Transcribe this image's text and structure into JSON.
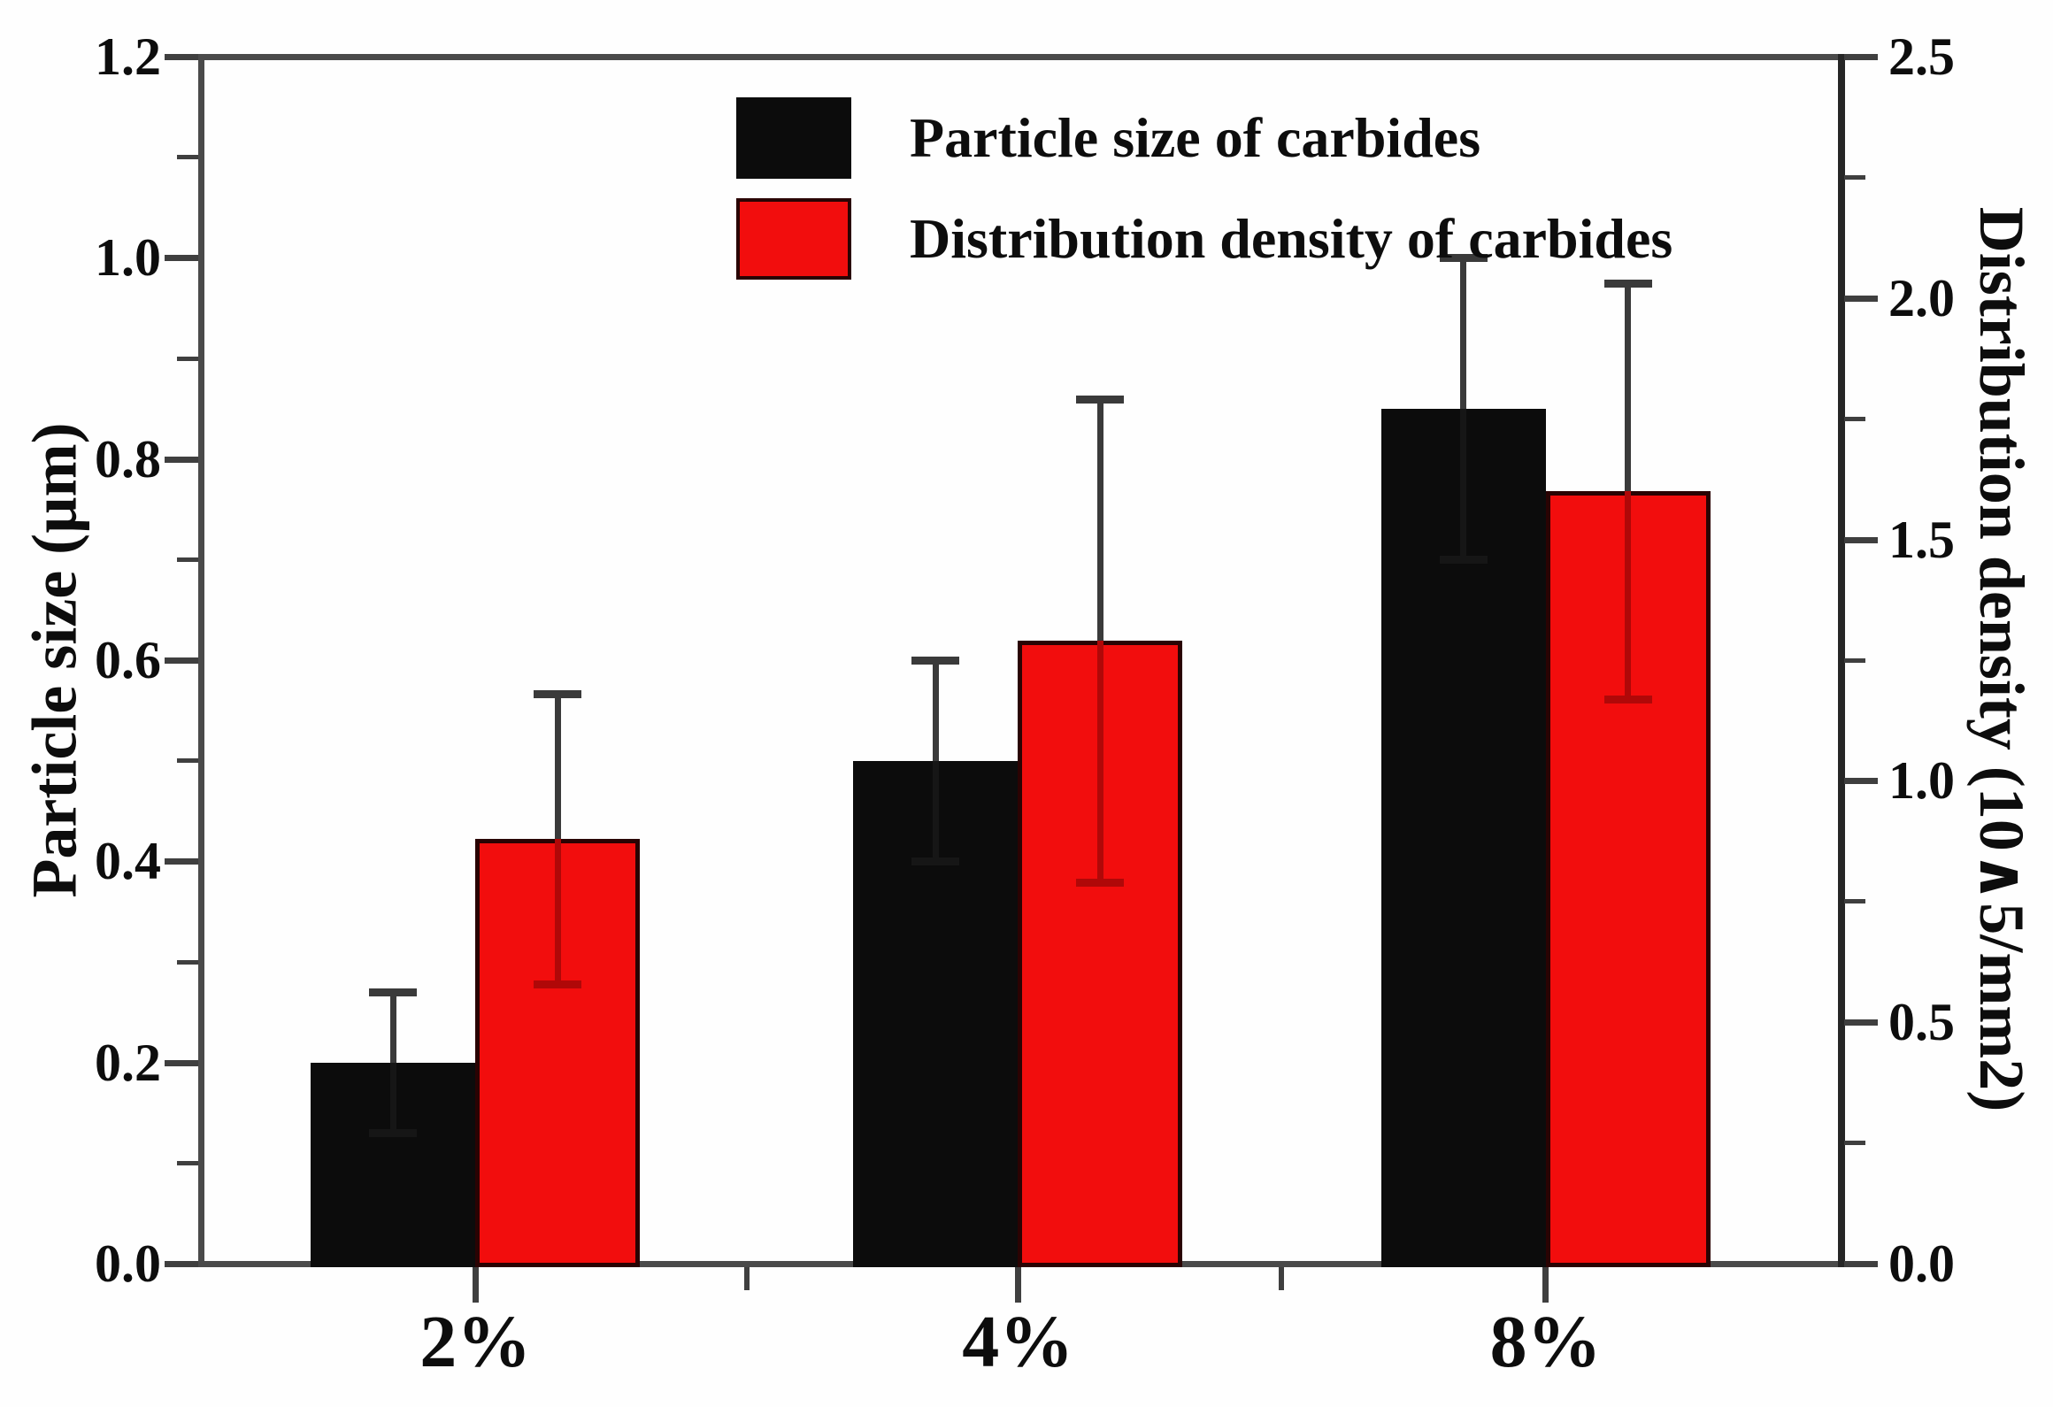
{
  "chart_data": {
    "type": "bar",
    "title": "",
    "categories": [
      "2%",
      "4%",
      "8%"
    ],
    "series": [
      {
        "name": "Particle size of carbides",
        "axis": "left",
        "color": "#0c0c0c",
        "border_color": "rgba(0,0,0,0)",
        "values": [
          0.2,
          0.5,
          0.85
        ],
        "errors": [
          0.07,
          0.1,
          0.15
        ],
        "upper_whisker_color": "#3a3a3a",
        "lower_whisker_color": "#161616"
      },
      {
        "name": "Distribution density of carbides",
        "axis": "right",
        "color": "#f20d0d",
        "border_color": "#2a0303",
        "values": [
          0.88,
          1.29,
          1.6
        ],
        "errors": [
          0.3,
          0.5,
          0.43
        ],
        "upper_whisker_color": "#3a3a3a",
        "lower_whisker_color": "#b00808"
      }
    ],
    "left_axis": {
      "label": "Particle size (µm)",
      "min": 0,
      "max": 1.2,
      "tick_values": [
        0.0,
        0.2,
        0.4,
        0.6,
        0.8,
        1.0,
        1.2
      ],
      "tick_labels": [
        "0.0",
        "0.2",
        "0.4",
        "0.6",
        "0.8",
        "1.0",
        "1.2"
      ],
      "minor_interval": 0.1
    },
    "right_axis": {
      "label": "Distribution density (10∧5/mm2)",
      "min": 0,
      "max": 2.5,
      "tick_values": [
        0.0,
        0.5,
        1.0,
        1.5,
        2.0,
        2.5
      ],
      "tick_labels": [
        "0.0",
        "0.5",
        "1.0",
        "1.5",
        "2.0",
        "2.5"
      ],
      "minor_interval": 0.25
    },
    "x_axis": {
      "group_fractions": [
        0.167,
        0.498,
        0.82
      ]
    },
    "legend_position": "top-center-inside",
    "grid": false
  },
  "styles": {
    "axis_color": "#4a4a4a",
    "right_axis_color": "#262626",
    "text_color": "#0d0d0d",
    "background": "#fefefe"
  }
}
